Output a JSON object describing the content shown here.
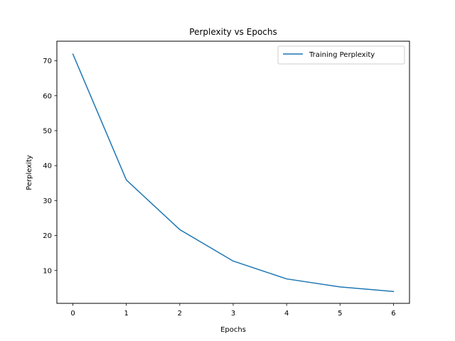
{
  "chart_data": {
    "type": "line",
    "title": "Perplexity vs Epochs",
    "xlabel": "Epochs",
    "ylabel": "Perplexity",
    "x": [
      0,
      1,
      2,
      3,
      4,
      5,
      6
    ],
    "xlim": [
      -0.3,
      6.3
    ],
    "ylim": [
      0.6,
      75.6
    ],
    "xticks": [
      0,
      1,
      2,
      3,
      4,
      5,
      6
    ],
    "yticks": [
      10,
      20,
      30,
      40,
      50,
      60,
      70
    ],
    "grid": false,
    "legend_position": "upper-right",
    "series": [
      {
        "name": "Training Perplexity",
        "color": "#1f77b4",
        "values": [
          71.9,
          35.9,
          21.7,
          12.7,
          7.6,
          5.3,
          4.0
        ]
      }
    ]
  }
}
